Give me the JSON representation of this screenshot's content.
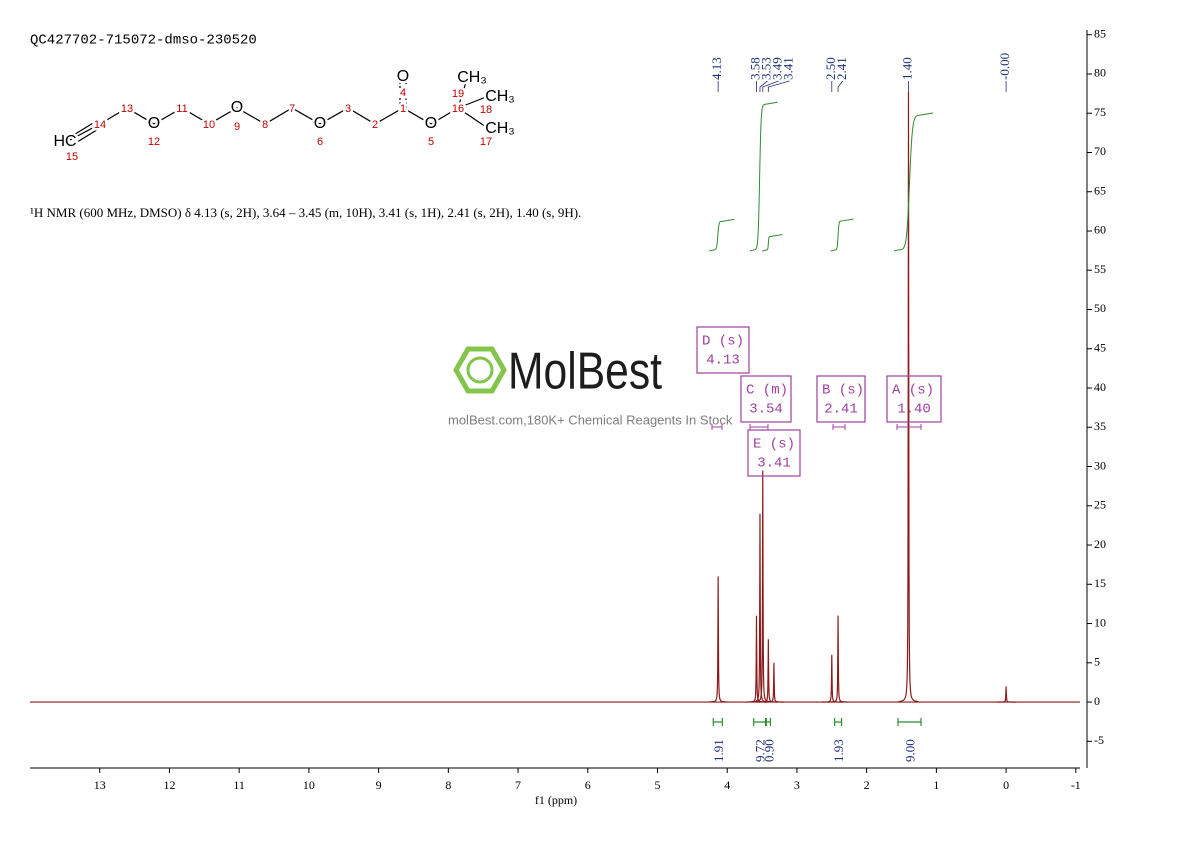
{
  "chart_data": {
    "type": "nmr",
    "title": "QC427702-715072-dmso-230520",
    "description": "¹H NMR (600 MHz, DMSO) δ 4.13 (s, 2H), 3.64 – 3.45 (m, 10H), 3.41 (s, 1H), 2.41 (s, 2H), 1.40 (s, 9H).",
    "structure_labels": [
      "HC",
      "15",
      "14",
      "13",
      "O",
      "12",
      "11",
      "10",
      "O",
      "9",
      "8",
      "7",
      "O",
      "6",
      "3",
      "2",
      "1",
      "4",
      "O",
      "O",
      "5",
      "16",
      "19",
      "CH₃",
      "18",
      "CH₃",
      "CH₃",
      "17"
    ],
    "watermark": {
      "brand": "MolBest",
      "tagline": "molBest.com,180K+ Chemical Reagents In Stock"
    },
    "x_label": "f1 (ppm)",
    "xlim": [
      14.0,
      -1.06
    ],
    "xticks": [
      13,
      12,
      11,
      10,
      9,
      8,
      7,
      6,
      5,
      4,
      3,
      2,
      1,
      0,
      -1
    ],
    "ylim": [
      -8.4,
      85.6
    ],
    "yticks": [
      -5,
      0,
      5,
      10,
      15,
      20,
      25,
      30,
      35,
      40,
      45,
      50,
      55,
      60,
      65,
      70,
      75,
      80,
      85
    ],
    "spectrum": {
      "color": "#8b1a1a",
      "x": [
        4.13,
        3.58,
        3.53,
        3.49,
        3.41,
        3.33,
        2.5,
        2.41,
        1.4,
        0.0
      ],
      "values": [
        16,
        11,
        24,
        29.5,
        8,
        5,
        6,
        11,
        77.7,
        2
      ]
    },
    "peak_label_color": "#1f2f7a",
    "peak_labels": [
      4.13,
      3.58,
      3.53,
      3.49,
      3.41,
      {
        "value": 2.5,
        "label": "2.50"
      },
      2.41,
      {
        "value": 1.4,
        "label": "1.40"
      },
      {
        "value": 0,
        "label": "-0.00"
      }
    ],
    "integrals": {
      "color": "#2e8b2e",
      "from": [
        4.2,
        3.62,
        3.44,
        2.46,
        1.55
      ],
      "to": [
        4.07,
        3.45,
        3.38,
        2.36,
        1.22
      ],
      "values": [
        1.91,
        9.72,
        0.9,
        1.93,
        9.0
      ],
      "value_labels": [
        "1.91",
        "9.72",
        "0.90",
        "1.93",
        "9.00"
      ]
    },
    "multiplets": {
      "color": "#a040a0",
      "names": [
        "D (s)",
        "C (m)",
        "B (s)",
        "A (s)",
        "E (s)"
      ],
      "values": [
        4.13,
        3.54,
        2.41,
        1.4,
        3.41
      ],
      "value_labels": [
        "4.13",
        "3.54",
        "2.41",
        "1.40",
        "3.41"
      ]
    }
  }
}
